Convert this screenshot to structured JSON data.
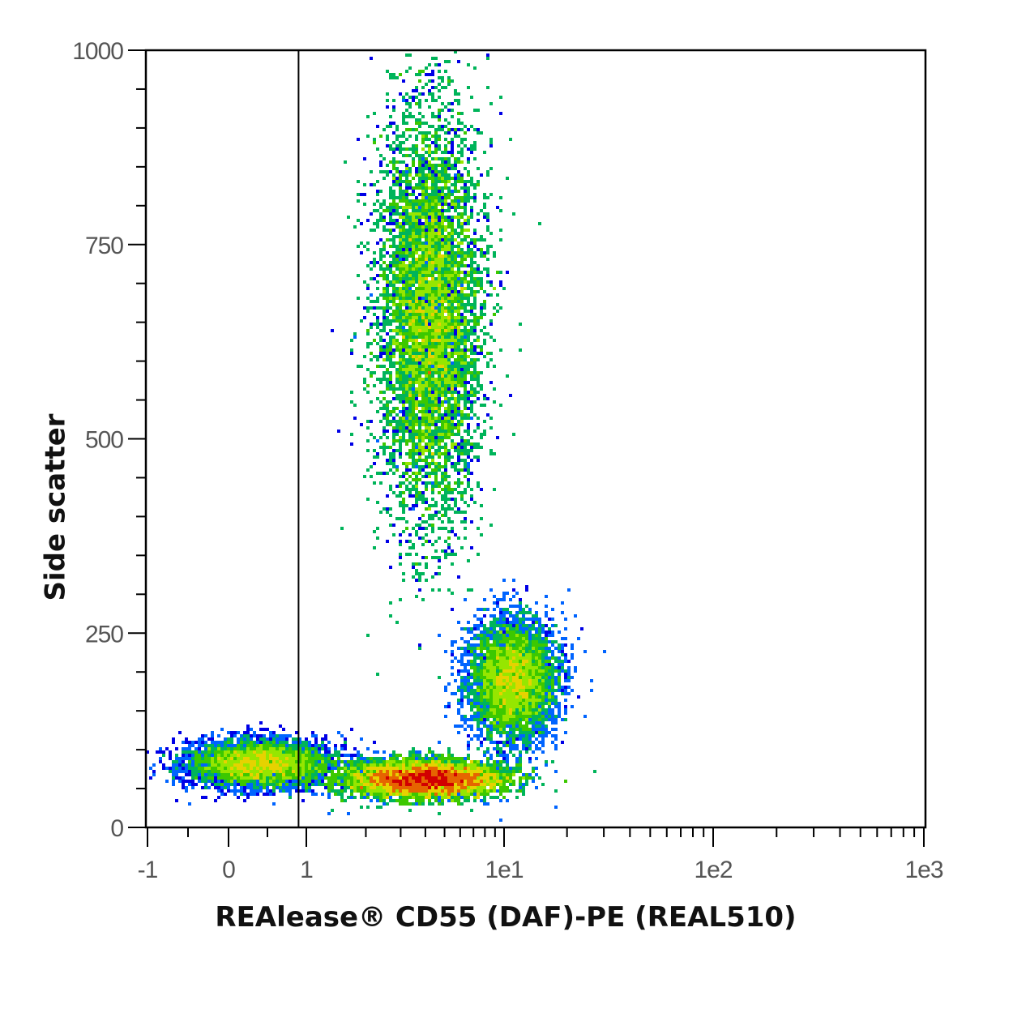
{
  "chart_data": {
    "type": "scatter",
    "plot_style": "density dot plot (flow cytometry)",
    "xlabel": "REAlease® CD55 (DAF)-PE (REAL510)",
    "ylabel": "Side scatter",
    "x_scale": "hlog",
    "x_ticks": [
      "-1",
      "0",
      "1",
      "1e1",
      "1e2",
      "1e3"
    ],
    "x_range": [
      -1,
      1000
    ],
    "y_ticks": [
      "0",
      "250",
      "500",
      "750",
      "1000"
    ],
    "ylim": [
      0,
      1000
    ],
    "gate_line_x": 0.9,
    "grid": false,
    "density_colors": [
      "#0000e6",
      "#0064ff",
      "#00b45a",
      "#3cc800",
      "#96e600",
      "#e6d200",
      "#e66400",
      "#d20000"
    ],
    "populations": [
      {
        "name": "",
        "x_center": 4.2,
        "y_center": 660,
        "x_spread_decades": 0.13,
        "y_spread": 130,
        "weight": 0.4
      },
      {
        "name": "",
        "x_center": 11,
        "y_center": 190,
        "x_spread_decades": 0.11,
        "y_spread": 38,
        "weight": 0.16
      },
      {
        "name": "",
        "x_center": 4.0,
        "y_center": 62,
        "x_spread_decades": 0.2,
        "y_spread": 12,
        "weight": 0.32
      },
      {
        "name": "",
        "x_center": 0.4,
        "y_center": 82,
        "x_spread_decades": 0.18,
        "y_spread": 15,
        "weight": 0.12
      }
    ]
  }
}
